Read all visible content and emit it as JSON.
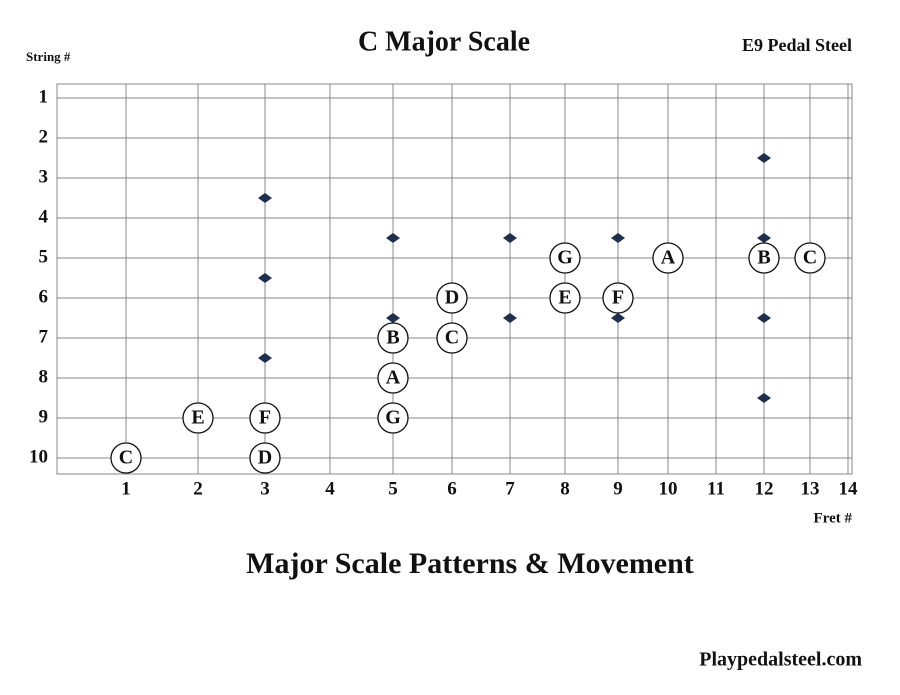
{
  "title": "C Major Scale",
  "instrument": "E9 Pedal Steel",
  "y_axis_label": "String #",
  "x_axis_label": "Fret #",
  "strings": [
    1,
    2,
    3,
    4,
    5,
    6,
    7,
    8,
    9,
    10
  ],
  "frets": [
    1,
    2,
    3,
    4,
    5,
    6,
    7,
    8,
    9,
    10,
    11,
    12,
    13,
    14
  ],
  "markers": [
    {
      "fret": 3,
      "string": 3.5
    },
    {
      "fret": 3,
      "string": 5.5
    },
    {
      "fret": 3,
      "string": 7.5
    },
    {
      "fret": 5,
      "string": 4.5
    },
    {
      "fret": 5,
      "string": 6.5
    },
    {
      "fret": 7,
      "string": 4.5
    },
    {
      "fret": 7,
      "string": 6.5
    },
    {
      "fret": 9,
      "string": 4.5
    },
    {
      "fret": 9,
      "string": 6.5
    },
    {
      "fret": 12,
      "string": 2.5
    },
    {
      "fret": 12,
      "string": 4.5
    },
    {
      "fret": 12,
      "string": 6.5
    },
    {
      "fret": 12,
      "string": 8.5
    }
  ],
  "notes": [
    {
      "label": "C",
      "fret": 1,
      "string": 10
    },
    {
      "label": "E",
      "fret": 2,
      "string": 9
    },
    {
      "label": "F",
      "fret": 3,
      "string": 9
    },
    {
      "label": "D",
      "fret": 3,
      "string": 10
    },
    {
      "label": "B",
      "fret": 5,
      "string": 7
    },
    {
      "label": "A",
      "fret": 5,
      "string": 8
    },
    {
      "label": "G",
      "fret": 5,
      "string": 9
    },
    {
      "label": "D",
      "fret": 6,
      "string": 6
    },
    {
      "label": "C",
      "fret": 6,
      "string": 7
    },
    {
      "label": "G",
      "fret": 8,
      "string": 5
    },
    {
      "label": "E",
      "fret": 8,
      "string": 6
    },
    {
      "label": "F",
      "fret": 9,
      "string": 6
    },
    {
      "label": "A",
      "fret": 10,
      "string": 5
    },
    {
      "label": "B",
      "fret": 12,
      "string": 5
    },
    {
      "label": "C",
      "fret": 13,
      "string": 5
    }
  ],
  "subtitle": "Major Scale Patterns & Movement",
  "footer": "Playpedalsteel.com"
}
